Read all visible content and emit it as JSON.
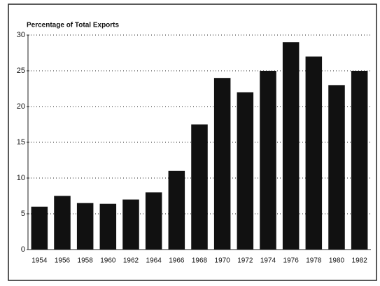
{
  "chart_data": {
    "type": "bar",
    "title": "Percentage of Total Exports",
    "categories": [
      "1954",
      "1956",
      "1958",
      "1960",
      "1962",
      "1964",
      "1966",
      "1968",
      "1970",
      "1972",
      "1974",
      "1976",
      "1978",
      "1980",
      "1982"
    ],
    "values": [
      6,
      7.5,
      6.5,
      6.4,
      7,
      8,
      11,
      17.5,
      24,
      22,
      25,
      29,
      27,
      23,
      25
    ],
    "color": "#111111",
    "ylim": [
      0,
      30
    ],
    "yticks": [
      0,
      5,
      10,
      15,
      20,
      25,
      30
    ],
    "grid": true
  }
}
